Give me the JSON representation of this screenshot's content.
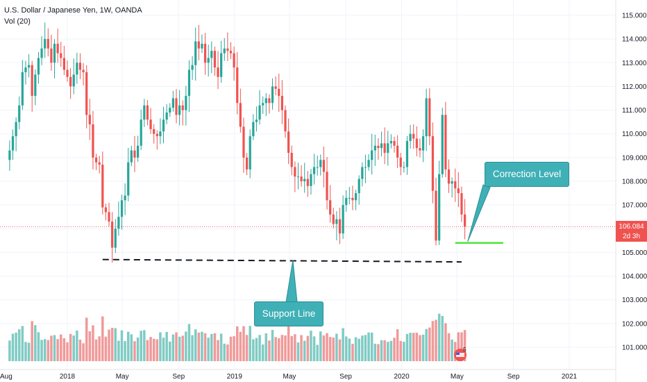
{
  "legend": {
    "title": "U.S. Dollar / Japanese Yen, 1W, OANDA",
    "volume": "Vol (20)"
  },
  "price_label": {
    "value": "106.084",
    "countdown": "2d 3h"
  },
  "annotations": {
    "support": "Support Line",
    "correction": "Correction Level"
  },
  "alert_count": "5",
  "colors": {
    "up": "#26a69a",
    "down": "#ef5350",
    "vol_up": "#80cbc4",
    "vol_down": "#ef9a9a",
    "callout": "#3fb0b6",
    "correction_line": "#4ce63a",
    "support_line": "#131722"
  },
  "chart_data": {
    "type": "candlestick",
    "title": "U.S. Dollar / Japanese Yen, 1W, OANDA",
    "y_axis": {
      "position": "right",
      "ticks": [
        101,
        102,
        103,
        104,
        105,
        106,
        107,
        108,
        109,
        110,
        111,
        112,
        113,
        114,
        115
      ],
      "tick_labels": [
        "101.000",
        "102.000",
        "103.000",
        "104.000",
        "105.000",
        "106.000",
        "107.000",
        "108.000",
        "109.000",
        "110.000",
        "111.000",
        "112.000",
        "113.000",
        "114.000",
        "115.000"
      ],
      "range": [
        100.3,
        115.8
      ]
    },
    "x_axis": {
      "ticks": [
        "2018-01-01",
        "2018-05-01",
        "2018-09-01",
        "2019-01-01",
        "2019-05-01",
        "2019-09-01",
        "2020-01-01",
        "2020-05-01",
        "2020-09-01",
        "2021-01-01"
      ],
      "tick_labels": [
        "2018",
        "May",
        "Sep",
        "2019",
        "May",
        "Sep",
        "2020",
        "May",
        "Sep",
        "2021"
      ],
      "first_partial_label": "Aug"
    },
    "grid": true,
    "current_price": 106.084,
    "weekly_close": [
      109.3,
      109.9,
      110.5,
      111.2,
      112.6,
      112.8,
      112.9,
      111.6,
      112.5,
      113.2,
      113.6,
      114.0,
      113.6,
      113.0,
      113.8,
      113.4,
      113.2,
      112.7,
      112.4,
      112.0,
      112.5,
      113.0,
      112.7,
      112.6,
      110.8,
      110.4,
      109.0,
      108.8,
      108.7,
      106.9,
      106.7,
      106.3,
      105.2,
      106.0,
      106.5,
      107.2,
      107.4,
      108.8,
      109.3,
      109.0,
      109.5,
      110.6,
      111.2,
      110.6,
      110.2,
      110.0,
      109.9,
      110.1,
      110.6,
      110.9,
      111.1,
      111.5,
      110.8,
      111.2,
      111.0,
      111.6,
      112.7,
      112.9,
      113.9,
      113.6,
      113.8,
      113.0,
      113.2,
      113.5,
      112.8,
      112.4,
      113.4,
      113.6,
      113.5,
      113.4,
      112.8,
      111.3,
      110.3,
      109.0,
      108.5,
      109.9,
      110.5,
      110.6,
      111.2,
      111.3,
      111.5,
      111.3,
      112.0,
      111.9,
      111.6,
      111.0,
      110.1,
      109.2,
      108.6,
      108.2,
      108.2,
      108.0,
      108.1,
      107.8,
      108.3,
      108.6,
      108.6,
      108.9,
      108.4,
      107.2,
      106.6,
      106.2,
      106.4,
      105.8,
      107.0,
      107.3,
      107.3,
      107.2,
      107.5,
      108.1,
      108.6,
      108.6,
      108.9,
      109.3,
      109.5,
      109.4,
      109.6,
      109.2,
      109.6,
      109.7,
      109.5,
      109.0,
      108.6,
      108.6,
      109.7,
      110.0,
      109.8,
      109.4,
      109.3,
      109.9,
      111.5,
      109.9,
      107.6,
      105.5,
      108.3,
      110.8,
      108.5,
      107.9,
      108.0,
      107.7,
      107.5,
      106.6,
      106.084
    ],
    "support_line": {
      "label": "Support Line",
      "from": {
        "date": "2018-03-19",
        "price": 104.7
      },
      "to": {
        "date": "2020-05-11",
        "price": 104.6
      }
    },
    "correction_level": {
      "label": "Correction Level",
      "price": 105.4,
      "from_date": "2020-04-27",
      "to_date": "2020-08-10"
    }
  }
}
